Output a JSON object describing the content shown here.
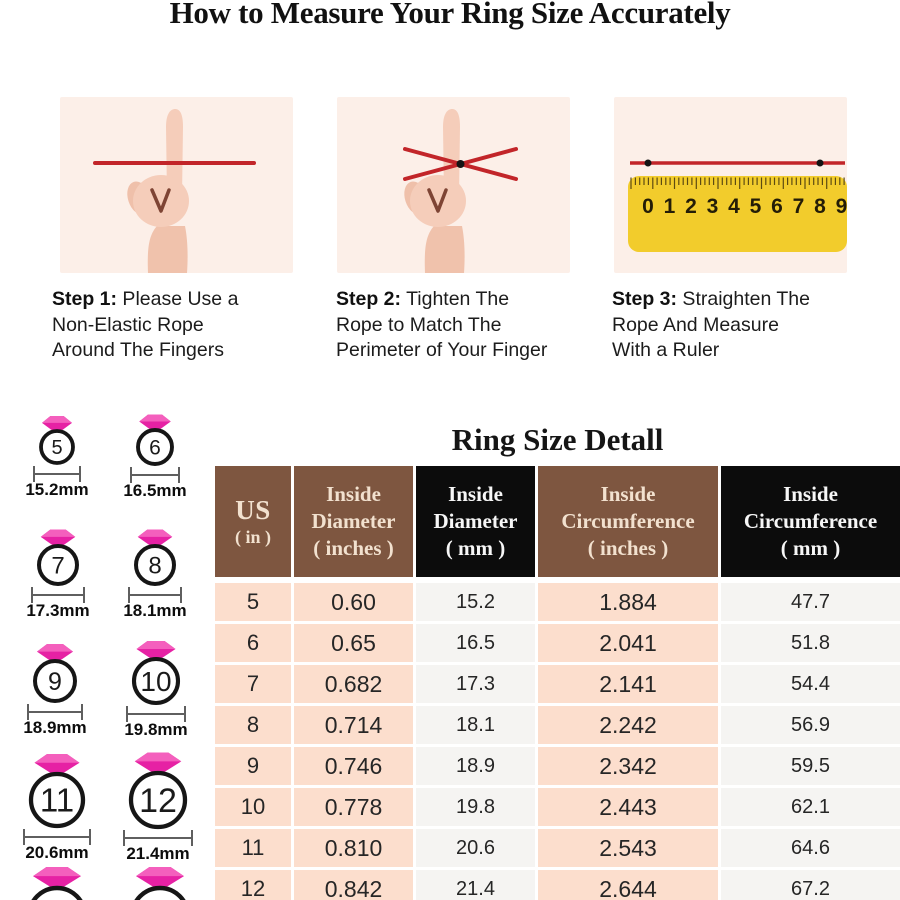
{
  "page": {
    "title": "How to Measure Your Ring Size Accurately"
  },
  "steps": [
    {
      "label": "Step 1:",
      "text": " Please Use a\nNon-Elastic Rope\nAround The Fingers"
    },
    {
      "label": "Step 2:",
      "text": " Tighten The\nRope to Match The\nPerimeter of Your Finger"
    },
    {
      "label": "Step 3:",
      "text": " Straighten The\nRope And Measure\nWith a Ruler",
      "ruler_numbers": [
        "0",
        "1",
        "2",
        "3",
        "4",
        "5",
        "6",
        "7",
        "8",
        "9"
      ]
    }
  ],
  "ring_chart": {
    "rings": [
      {
        "size": "5",
        "mm": "15.2mm"
      },
      {
        "size": "6",
        "mm": "16.5mm"
      },
      {
        "size": "7",
        "mm": "17.3mm"
      },
      {
        "size": "8",
        "mm": "18.1mm"
      },
      {
        "size": "9",
        "mm": "18.9mm"
      },
      {
        "size": "10",
        "mm": "19.8mm"
      },
      {
        "size": "11",
        "mm": "20.6mm"
      },
      {
        "size": "12",
        "mm": "21.4mm"
      },
      {
        "size": "",
        "mm": ""
      },
      {
        "size": "",
        "mm": ""
      }
    ]
  },
  "ring_table": {
    "title": "Ring Size Detall",
    "headers": [
      [
        "US",
        "( in )"
      ],
      [
        "Inside",
        "Diameter",
        "( inches )"
      ],
      [
        "Inside",
        "Diameter",
        "( mm )"
      ],
      [
        "Inside",
        "Circumference",
        "( inches )"
      ],
      [
        "Inside",
        "Circumference",
        "( mm )"
      ]
    ],
    "rows": [
      [
        "5",
        "0.60",
        "15.2",
        "1.884",
        "47.7"
      ],
      [
        "6",
        "0.65",
        "16.5",
        "2.041",
        "51.8"
      ],
      [
        "7",
        "0.682",
        "17.3",
        "2.141",
        "54.4"
      ],
      [
        "8",
        "0.714",
        "18.1",
        "2.242",
        "56.9"
      ],
      [
        "9",
        "0.746",
        "18.9",
        "2.342",
        "59.5"
      ],
      [
        "10",
        "0.778",
        "19.8",
        "2.443",
        "62.1"
      ],
      [
        "11",
        "0.810",
        "20.6",
        "2.543",
        "64.6"
      ],
      [
        "12",
        "0.842",
        "21.4",
        "2.644",
        "67.2"
      ]
    ]
  },
  "colors": {
    "header_brown": "#7e5640",
    "header_black": "#0c0c0c",
    "header_text_cream": "#f2e1cf",
    "header_text_white": "#f7f7f7",
    "cell_peach": "#fcdecd",
    "cell_light": "#f5f4f2",
    "rope_red": "#c22529",
    "ruler_yellow": "#f2cc2c",
    "diamond_pink": "#e621a4",
    "panel_pink": "#fcefe8"
  }
}
